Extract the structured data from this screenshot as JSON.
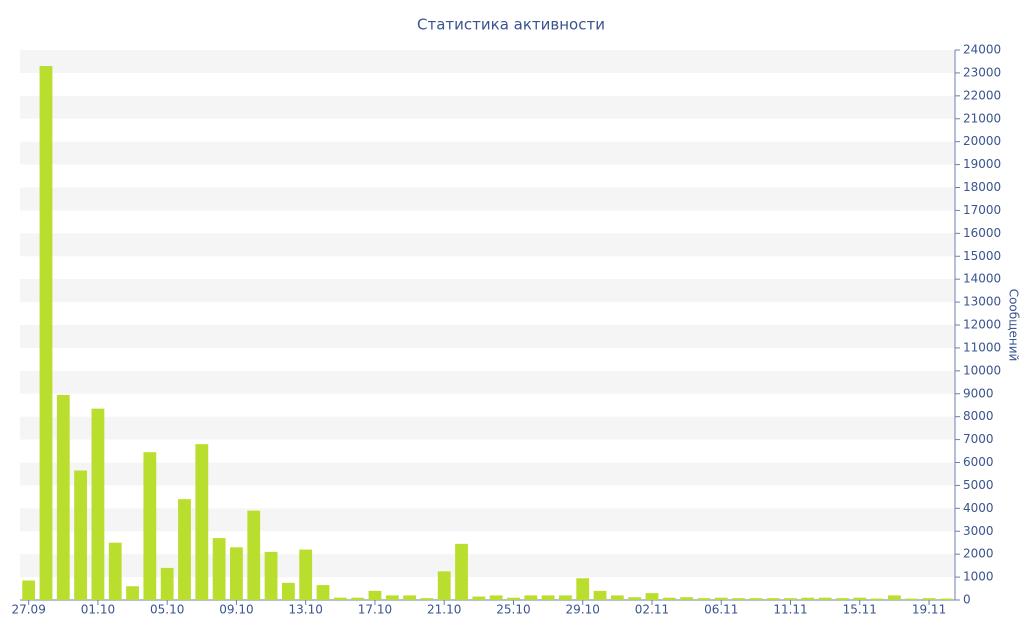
{
  "chart_data": {
    "type": "bar",
    "title": "Статистика активности",
    "y_axis_label": "Сообщений",
    "categories": [
      "27.09",
      null,
      null,
      null,
      "01.10",
      null,
      null,
      null,
      "05.10",
      null,
      null,
      null,
      "09.10",
      null,
      null,
      null,
      "13.10",
      null,
      null,
      null,
      "17.10",
      null,
      null,
      null,
      "21.10",
      null,
      null,
      null,
      "25.10",
      null,
      null,
      null,
      "29.10",
      null,
      null,
      null,
      "02.11",
      null,
      null,
      null,
      "06.11",
      null,
      null,
      null,
      "11.11",
      null,
      null,
      null,
      "15.11",
      null,
      null,
      null,
      "19.11",
      null
    ],
    "values": [
      850,
      23300,
      8950,
      5650,
      8350,
      2500,
      600,
      6450,
      1400,
      4400,
      6800,
      2700,
      2300,
      3900,
      2100,
      750,
      2200,
      650,
      100,
      100,
      400,
      200,
      200,
      80,
      1250,
      2450,
      150,
      200,
      100,
      200,
      200,
      200,
      950,
      400,
      200,
      120,
      300,
      100,
      120,
      80,
      100,
      80,
      80,
      80,
      80,
      100,
      100,
      80,
      100,
      60,
      200,
      60,
      80,
      60
    ],
    "color": "#bade2e",
    "ylim": [
      0,
      24000
    ],
    "yticks": [
      0,
      1000,
      2000,
      3000,
      4000,
      5000,
      6000,
      7000,
      8000,
      9000,
      10000,
      11000,
      12000,
      13000,
      14000,
      15000,
      16000,
      17000,
      18000,
      19000,
      20000,
      21000,
      22000,
      23000,
      24000
    ],
    "grid": true
  }
}
